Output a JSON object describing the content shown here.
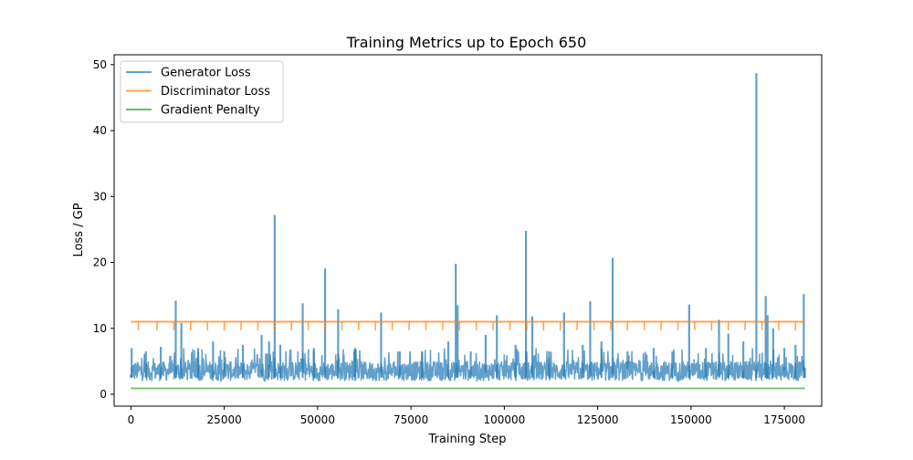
{
  "chart_data": {
    "type": "line",
    "title": "Training Metrics up to Epoch 650",
    "xlabel": "Training Step",
    "ylabel": "Loss / GP",
    "xlim": [
      -4500,
      185000
    ],
    "ylim": [
      -1.8,
      51.5
    ],
    "x_ticks": [
      0,
      25000,
      50000,
      75000,
      100000,
      125000,
      150000,
      175000
    ],
    "x_tick_labels": [
      "0",
      "25000",
      "50000",
      "75000",
      "100000",
      "125000",
      "150000",
      "175000"
    ],
    "y_ticks": [
      0,
      10,
      20,
      30,
      40,
      50
    ],
    "y_tick_labels": [
      "0",
      "10",
      "20",
      "30",
      "40",
      "50"
    ],
    "grid": false,
    "legend_position": "upper-left",
    "x_max_step": 180500,
    "series": [
      {
        "name": "Generator Loss",
        "color": "#1f77b4",
        "alpha": 0.7,
        "baseline_range": [
          2,
          5
        ],
        "points": [
          [
            0,
            3
          ],
          [
            200,
            7.0
          ],
          [
            1200,
            2.5
          ],
          [
            4000,
            6.5
          ],
          [
            8000,
            7.2
          ],
          [
            12000,
            14.2
          ],
          [
            13500,
            10.8
          ],
          [
            18000,
            7.0
          ],
          [
            22000,
            8.0
          ],
          [
            25000,
            6.5
          ],
          [
            30000,
            7.5
          ],
          [
            35000,
            9.0
          ],
          [
            37000,
            8.0
          ],
          [
            38500,
            27.2
          ],
          [
            40000,
            7.5
          ],
          [
            46000,
            13.8
          ],
          [
            49000,
            7.0
          ],
          [
            52000,
            19.1
          ],
          [
            55500,
            12.9
          ],
          [
            60000,
            7.0
          ],
          [
            67000,
            12.4
          ],
          [
            72000,
            6.5
          ],
          [
            78000,
            6.5
          ],
          [
            85000,
            8.0
          ],
          [
            87000,
            19.8
          ],
          [
            87500,
            13.5
          ],
          [
            91000,
            6.5
          ],
          [
            95000,
            9.0
          ],
          [
            98000,
            12.0
          ],
          [
            103000,
            7.5
          ],
          [
            105800,
            24.8
          ],
          [
            107500,
            11.8
          ],
          [
            112000,
            6.5
          ],
          [
            116000,
            12.4
          ],
          [
            121000,
            7.5
          ],
          [
            123000,
            14.1
          ],
          [
            126000,
            8.0
          ],
          [
            129000,
            20.7
          ],
          [
            133000,
            6.5
          ],
          [
            140000,
            7.0
          ],
          [
            145000,
            6.5
          ],
          [
            149500,
            13.6
          ],
          [
            154000,
            7.0
          ],
          [
            157500,
            11.3
          ],
          [
            160000,
            9.2
          ],
          [
            164000,
            8.0
          ],
          [
            167500,
            48.7
          ],
          [
            170000,
            14.9
          ],
          [
            170500,
            12.0
          ],
          [
            172000,
            10.0
          ],
          [
            175000,
            7.0
          ],
          [
            178000,
            7.5
          ],
          [
            180200,
            15.2
          ],
          [
            180500,
            4.0
          ]
        ]
      },
      {
        "name": "Discriminator Loss",
        "color": "#ff7f0e",
        "alpha": 0.7,
        "constant_value": 11.0,
        "dip_value": 9.7,
        "dip_steps": [
          2000,
          7000,
          11500,
          16000,
          20500,
          25000,
          29500,
          34000,
          38500,
          43000,
          47500,
          52000,
          56500,
          61000,
          65500,
          70000,
          74500,
          79000,
          83500,
          88000,
          92500,
          97000,
          101500,
          106000,
          110500,
          115000,
          119500,
          124000,
          128500,
          133000,
          137500,
          142000,
          146500,
          151000,
          155500,
          160000,
          164500,
          169000,
          173500,
          178000
        ]
      },
      {
        "name": "Gradient Penalty",
        "color": "#2ca02c",
        "alpha": 0.7,
        "constant_value": 0.9
      }
    ]
  }
}
